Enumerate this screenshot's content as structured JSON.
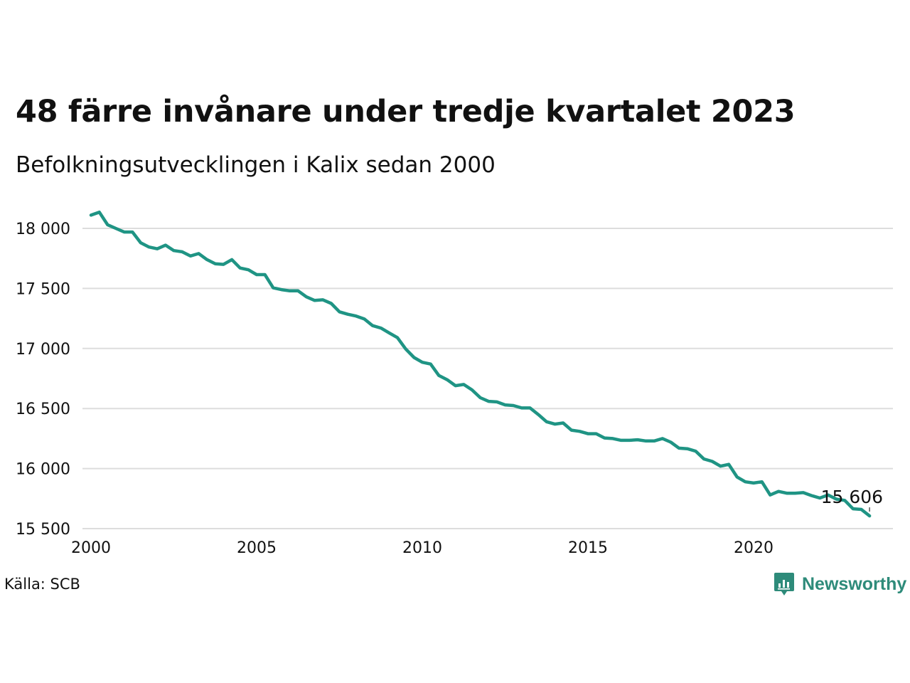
{
  "title": "48 färre invånare under tredje kvartalet 2023",
  "subtitle": "Befolkningsutvecklingen i Kalix sedan 2000",
  "source": "Källa: SCB",
  "brand": {
    "name": "Newsworthy",
    "icon": "newsworthy-logo-icon",
    "color": "#2e8b7a"
  },
  "colors": {
    "line": "#1f9484",
    "grid": "#dddddd"
  },
  "chart_data": {
    "type": "line",
    "title": "48 färre invånare under tredje kvartalet 2023",
    "subtitle": "Befolkningsutvecklingen i Kalix sedan 2000",
    "xlabel": "",
    "ylabel": "",
    "x_ticks": [
      "2000",
      "2005",
      "2010",
      "2015",
      "2020"
    ],
    "y_ticks": [
      "15 500",
      "16 000",
      "16 500",
      "17 000",
      "17 500",
      "18 000"
    ],
    "y_tick_values": [
      15500,
      16000,
      16500,
      17000,
      17500,
      18000
    ],
    "xlim": [
      2000,
      2024.25
    ],
    "ylim": [
      15500,
      18200
    ],
    "grid": true,
    "annotation": {
      "label": "15 606",
      "x": 2023.5,
      "y": 15606
    },
    "series": [
      {
        "x": [
          2000.0,
          2000.25,
          2000.5,
          2000.75,
          2001.0,
          2001.25,
          2001.5,
          2001.75,
          2002.0,
          2002.25,
          2002.5,
          2002.75,
          2003.0,
          2003.25,
          2003.5,
          2003.75,
          2004.0,
          2004.25,
          2004.5,
          2004.75,
          2005.0,
          2005.25,
          2005.5,
          2005.75,
          2006.0,
          2006.25,
          2006.5,
          2006.75,
          2007.0,
          2007.25,
          2007.5,
          2007.75,
          2008.0,
          2008.25,
          2008.5,
          2008.75,
          2009.0,
          2009.25,
          2009.5,
          2009.75,
          2010.0,
          2010.25,
          2010.5,
          2010.75,
          2011.0,
          2011.25,
          2011.5,
          2011.75,
          2012.0,
          2012.25,
          2012.5,
          2012.75,
          2013.0,
          2013.25,
          2013.5,
          2013.75,
          2014.0,
          2014.25,
          2014.5,
          2014.75,
          2015.0,
          2015.25,
          2015.5,
          2015.75,
          2016.0,
          2016.25,
          2016.5,
          2016.75,
          2017.0,
          2017.25,
          2017.5,
          2017.75,
          2018.0,
          2018.25,
          2018.5,
          2018.75,
          2019.0,
          2019.25,
          2019.5,
          2019.75,
          2020.0,
          2020.25,
          2020.5,
          2020.75,
          2021.0,
          2021.25,
          2021.5,
          2021.75,
          2022.0,
          2022.25,
          2022.5,
          2022.75,
          2023.0,
          2023.25,
          2023.5
        ],
        "values": [
          18110,
          18135,
          18030,
          18000,
          17970,
          17970,
          17880,
          17845,
          17830,
          17860,
          17815,
          17805,
          17770,
          17790,
          17740,
          17705,
          17700,
          17740,
          17670,
          17655,
          17615,
          17615,
          17505,
          17490,
          17480,
          17480,
          17430,
          17400,
          17405,
          17375,
          17305,
          17285,
          17270,
          17245,
          17190,
          17170,
          17130,
          17090,
          16995,
          16925,
          16885,
          16870,
          16775,
          16740,
          16690,
          16700,
          16655,
          16590,
          16560,
          16555,
          16530,
          16525,
          16505,
          16505,
          16450,
          16390,
          16370,
          16380,
          16320,
          16310,
          16290,
          16290,
          16255,
          16250,
          16235,
          16235,
          16240,
          16230,
          16230,
          16250,
          16220,
          16170,
          16165,
          16145,
          16080,
          16060,
          16020,
          16035,
          15930,
          15890,
          15880,
          15890,
          15780,
          15810,
          15795,
          15795,
          15800,
          15775,
          15755,
          15780,
          15745,
          15735,
          15665,
          15660,
          15606
        ]
      }
    ]
  }
}
